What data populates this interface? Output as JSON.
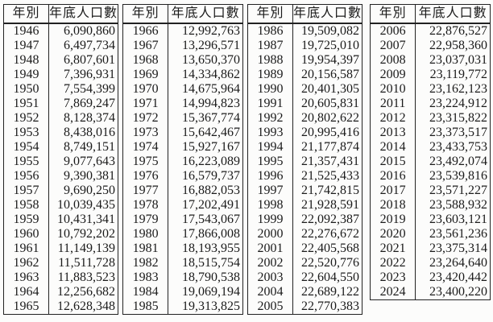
{
  "headers": {
    "year": "年別",
    "population": "年底人口數"
  },
  "groups": [
    {
      "rows": [
        {
          "year": "1946",
          "population": "6,090,860"
        },
        {
          "year": "1947",
          "population": "6,497,734"
        },
        {
          "year": "1948",
          "population": "6,807,601"
        },
        {
          "year": "1949",
          "population": "7,396,931"
        },
        {
          "year": "1950",
          "population": "7,554,399"
        },
        {
          "year": "1951",
          "population": "7,869,247"
        },
        {
          "year": "1952",
          "population": "8,128,374"
        },
        {
          "year": "1953",
          "population": "8,438,016"
        },
        {
          "year": "1954",
          "population": "8,749,151"
        },
        {
          "year": "1955",
          "population": "9,077,643"
        },
        {
          "year": "1956",
          "population": "9,390,381"
        },
        {
          "year": "1957",
          "population": "9,690,250"
        },
        {
          "year": "1958",
          "population": "10,039,435"
        },
        {
          "year": "1959",
          "population": "10,431,341"
        },
        {
          "year": "1960",
          "population": "10,792,202"
        },
        {
          "year": "1961",
          "population": "11,149,139"
        },
        {
          "year": "1962",
          "population": "11,511,728"
        },
        {
          "year": "1963",
          "population": "11,883,523"
        },
        {
          "year": "1964",
          "population": "12,256,682"
        },
        {
          "year": "1965",
          "population": "12,628,348"
        }
      ]
    },
    {
      "rows": [
        {
          "year": "1966",
          "population": "12,992,763"
        },
        {
          "year": "1967",
          "population": "13,296,571"
        },
        {
          "year": "1968",
          "population": "13,650,370"
        },
        {
          "year": "1969",
          "population": "14,334,862"
        },
        {
          "year": "1970",
          "population": "14,675,964"
        },
        {
          "year": "1971",
          "population": "14,994,823"
        },
        {
          "year": "1972",
          "population": "15,367,774"
        },
        {
          "year": "1973",
          "population": "15,642,467"
        },
        {
          "year": "1974",
          "population": "15,927,167"
        },
        {
          "year": "1975",
          "population": "16,223,089"
        },
        {
          "year": "1976",
          "population": "16,579,737"
        },
        {
          "year": "1977",
          "population": "16,882,053"
        },
        {
          "year": "1978",
          "population": "17,202,491"
        },
        {
          "year": "1979",
          "population": "17,543,067"
        },
        {
          "year": "1980",
          "population": "17,866,008"
        },
        {
          "year": "1981",
          "population": "18,193,955"
        },
        {
          "year": "1982",
          "population": "18,515,754"
        },
        {
          "year": "1983",
          "population": "18,790,538"
        },
        {
          "year": "1984",
          "population": "19,069,194"
        },
        {
          "year": "1985",
          "population": "19,313,825"
        }
      ]
    },
    {
      "rows": [
        {
          "year": "1986",
          "population": "19,509,082"
        },
        {
          "year": "1987",
          "population": "19,725,010"
        },
        {
          "year": "1988",
          "population": "19,954,397"
        },
        {
          "year": "1989",
          "population": "20,156,587"
        },
        {
          "year": "1990",
          "population": "20,401,305"
        },
        {
          "year": "1991",
          "population": "20,605,831"
        },
        {
          "year": "1992",
          "population": "20,802,622"
        },
        {
          "year": "1993",
          "population": "20,995,416"
        },
        {
          "year": "1994",
          "population": "21,177,874"
        },
        {
          "year": "1995",
          "population": "21,357,431"
        },
        {
          "year": "1996",
          "population": "21,525,433"
        },
        {
          "year": "1997",
          "population": "21,742,815"
        },
        {
          "year": "1998",
          "population": "21,928,591"
        },
        {
          "year": "1999",
          "population": "22,092,387"
        },
        {
          "year": "2000",
          "population": "22,276,672"
        },
        {
          "year": "2001",
          "population": "22,405,568"
        },
        {
          "year": "2002",
          "population": "22,520,776"
        },
        {
          "year": "2003",
          "population": "22,604,550"
        },
        {
          "year": "2004",
          "population": "22,689,122"
        },
        {
          "year": "2005",
          "population": "22,770,383"
        }
      ]
    },
    {
      "rows": [
        {
          "year": "2006",
          "population": "22,876,527"
        },
        {
          "year": "2007",
          "population": "22,958,360"
        },
        {
          "year": "2008",
          "population": "23,037,031"
        },
        {
          "year": "2009",
          "population": "23,119,772"
        },
        {
          "year": "2010",
          "population": "23,162,123"
        },
        {
          "year": "2011",
          "population": "23,224,912"
        },
        {
          "year": "2012",
          "population": "23,315,822"
        },
        {
          "year": "2013",
          "population": "23,373,517"
        },
        {
          "year": "2014",
          "population": "23,433,753"
        },
        {
          "year": "2015",
          "population": "23,492,074"
        },
        {
          "year": "2016",
          "population": "23,539,816"
        },
        {
          "year": "2017",
          "population": "23,571,227"
        },
        {
          "year": "2018",
          "population": "23,588,932"
        },
        {
          "year": "2019",
          "population": "23,603,121"
        },
        {
          "year": "2020",
          "population": "23,561,236"
        },
        {
          "year": "2021",
          "population": "23,375,314"
        },
        {
          "year": "2022",
          "population": "23,264,640"
        },
        {
          "year": "2023",
          "population": "23,420,442"
        },
        {
          "year": "2024",
          "population": "23,400,220"
        }
      ]
    }
  ]
}
